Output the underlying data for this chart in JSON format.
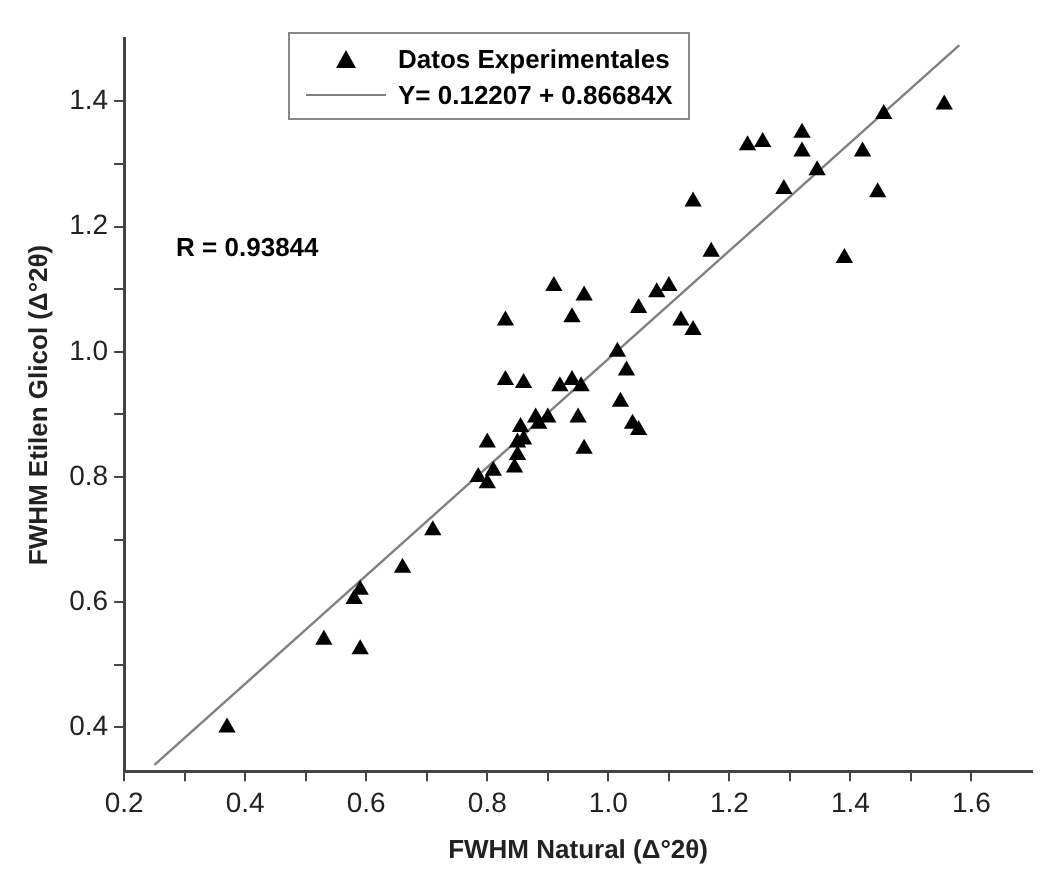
{
  "chart_data": {
    "type": "scatter",
    "xlabel": "FWHM Natural (Δ°2θ)",
    "ylabel": "FWHM Etilen Glicol (Δ°2θ)",
    "xlim": [
      0.2,
      1.7
    ],
    "ylim": [
      0.33,
      1.5
    ],
    "xticks": [
      0.2,
      {
        "value": 0.3,
        "label": null
      },
      0.4,
      {
        "value": 0.5,
        "label": null
      },
      0.6,
      {
        "value": 0.7,
        "label": null
      },
      0.8,
      {
        "value": 0.9,
        "label": null
      },
      {
        "value": 1,
        "label": "1.0"
      },
      {
        "value": 1.1,
        "label": null
      },
      1.2,
      {
        "value": 1.3,
        "label": null
      },
      1.4,
      {
        "value": 1.5,
        "label": null
      },
      1.6
    ],
    "yticks": [
      0.4,
      {
        "value": 0.5,
        "label": null
      },
      0.6,
      {
        "value": 0.7,
        "label": null
      },
      0.8,
      {
        "value": 0.9,
        "label": null
      },
      {
        "value": 1,
        "label": "1.0"
      },
      {
        "value": 1.1,
        "label": null
      },
      1.2,
      {
        "value": 1.3,
        "label": null
      },
      1.4
    ],
    "grid": false,
    "legend": "top left",
    "annotations": [
      "R = 0.93844"
    ],
    "series": [
      {
        "name": "Datos Experimentales",
        "marker": "triangle",
        "color": "#000000",
        "x": [
          0.37,
          0.53,
          0.59,
          0.58,
          0.59,
          0.66,
          0.71,
          0.785,
          0.8,
          0.81,
          0.8,
          0.845,
          0.85,
          0.85,
          0.86,
          0.855,
          0.885,
          0.9,
          0.95,
          0.96,
          1.04,
          1.05,
          0.83,
          0.83,
          0.86,
          0.91,
          0.94,
          0.96,
          0.92,
          0.94,
          0.955,
          0.88,
          1.015,
          1.03,
          1.02,
          1.05,
          1.08,
          1.1,
          1.12,
          1.14,
          1.14,
          1.17,
          1.23,
          1.255,
          1.29,
          1.32,
          1.32,
          1.345,
          1.39,
          1.42,
          1.445,
          1.455,
          1.555
        ],
        "values": [
          0.4,
          0.54,
          0.525,
          0.605,
          0.62,
          0.655,
          0.715,
          0.8,
          0.79,
          0.81,
          0.855,
          0.815,
          0.835,
          0.855,
          0.86,
          0.88,
          0.885,
          0.895,
          0.895,
          0.845,
          0.885,
          0.875,
          1.05,
          0.955,
          0.95,
          1.105,
          1.055,
          1.09,
          0.945,
          0.955,
          0.945,
          0.895,
          1.0,
          0.97,
          0.92,
          1.07,
          1.095,
          1.105,
          1.05,
          1.035,
          1.24,
          1.16,
          1.33,
          1.335,
          1.26,
          1.35,
          1.32,
          1.29,
          1.15,
          1.32,
          1.255,
          1.38,
          1.395
        ]
      },
      {
        "name": "Y= 0.12207 + 0.86684X",
        "type": "line",
        "marker": "none",
        "color": "#808080",
        "x": [
          0.25,
          1.58
        ],
        "values": [
          0.34,
          1.49
        ]
      }
    ]
  }
}
